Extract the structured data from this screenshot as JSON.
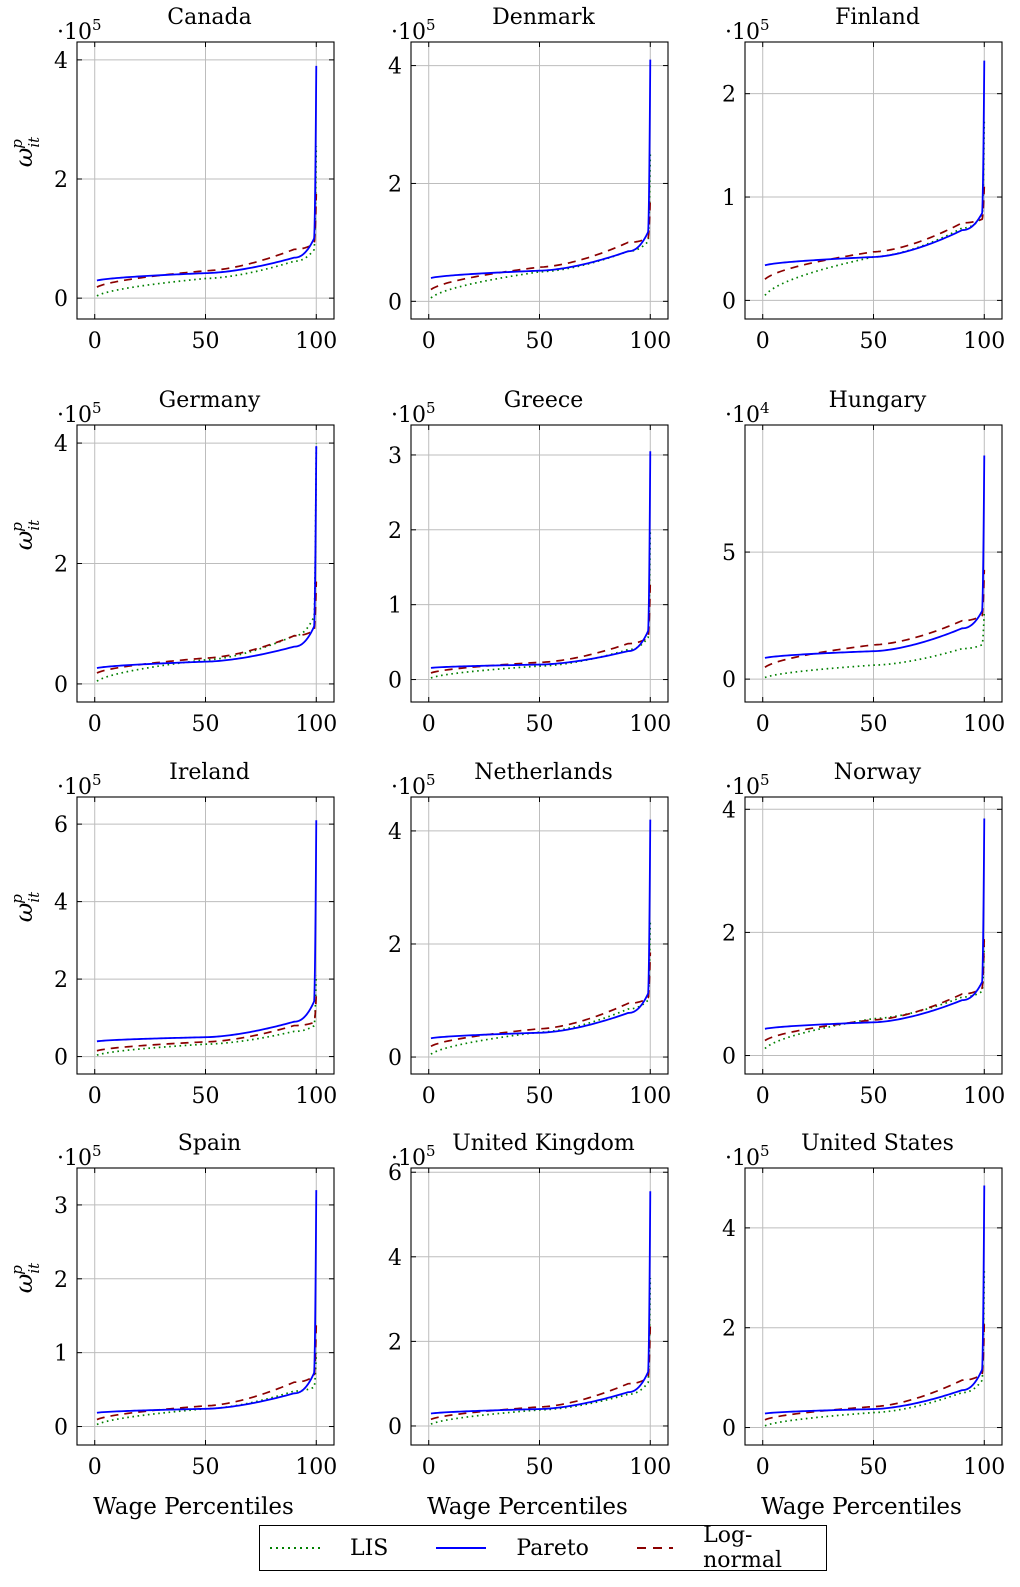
{
  "chart_data": {
    "type": "line",
    "layout": "grid 4x3",
    "xlabel": "Wage Percentiles",
    "ylabel": "ω^p_it",
    "x_ticks": [
      0,
      50,
      100
    ],
    "xlim": [
      -8,
      108
    ],
    "grid": true,
    "series_styles": [
      {
        "name": "LIS",
        "color": "#008000",
        "dash": "dotted"
      },
      {
        "name": "Pareto",
        "color": "#0000ff",
        "dash": "solid"
      },
      {
        "name": "Log-normal",
        "color": "#8b0000",
        "dash": "dashed"
      }
    ],
    "legend": {
      "placement": "bottom-center",
      "entries": [
        "LIS",
        "Pareto",
        "Log-normal"
      ]
    },
    "panels": [
      {
        "title": "Canada",
        "multiplier": "·10",
        "exponent": "5",
        "ylim": [
          -0.35,
          4.3
        ],
        "yticks": [
          0,
          2,
          4
        ],
        "series": {
          "LIS": {
            "start": 0.0,
            "mid": 0.33,
            "p90": 0.62,
            "end": 2.55
          },
          "Pareto": {
            "start": 0.28,
            "mid": 0.42,
            "p90": 0.68,
            "end": 3.9
          },
          "Log-normal": {
            "start": 0.15,
            "mid": 0.46,
            "p90": 0.82,
            "end": 1.75
          }
        }
      },
      {
        "title": "Denmark",
        "multiplier": "·10",
        "exponent": "5",
        "ylim": [
          -0.3,
          4.4
        ],
        "yticks": [
          0,
          2,
          4
        ],
        "series": {
          "LIS": {
            "start": 0.0,
            "mid": 0.5,
            "p90": 0.85,
            "end": 2.5
          },
          "Pareto": {
            "start": 0.38,
            "mid": 0.52,
            "p90": 0.85,
            "end": 4.1
          },
          "Log-normal": {
            "start": 0.15,
            "mid": 0.58,
            "p90": 1.0,
            "end": 1.75
          }
        }
      },
      {
        "title": "Finland",
        "multiplier": "·10",
        "exponent": "5",
        "ylim": [
          -0.18,
          2.5
        ],
        "yticks": [
          0,
          1,
          2
        ],
        "series": {
          "LIS": {
            "start": 0.0,
            "mid": 0.42,
            "p90": 0.7,
            "end": 1.75
          },
          "Pareto": {
            "start": 0.33,
            "mid": 0.42,
            "p90": 0.68,
            "end": 2.32
          },
          "Log-normal": {
            "start": 0.17,
            "mid": 0.47,
            "p90": 0.75,
            "end": 1.1
          }
        }
      },
      {
        "title": "Germany",
        "multiplier": "·10",
        "exponent": "5",
        "ylim": [
          -0.3,
          4.3
        ],
        "yticks": [
          0,
          2,
          4
        ],
        "series": {
          "LIS": {
            "start": 0.0,
            "mid": 0.4,
            "p90": 0.8,
            "end": 4.0
          },
          "Pareto": {
            "start": 0.25,
            "mid": 0.37,
            "p90": 0.62,
            "end": 3.95
          },
          "Log-normal": {
            "start": 0.15,
            "mid": 0.43,
            "p90": 0.8,
            "end": 1.7
          }
        }
      },
      {
        "title": "Greece",
        "multiplier": "·10",
        "exponent": "5",
        "ylim": [
          -0.3,
          3.4
        ],
        "yticks": [
          0,
          1,
          2,
          3
        ],
        "series": {
          "LIS": {
            "start": 0.0,
            "mid": 0.18,
            "p90": 0.4,
            "end": 2.0
          },
          "Pareto": {
            "start": 0.15,
            "mid": 0.2,
            "p90": 0.38,
            "end": 3.05
          },
          "Log-normal": {
            "start": 0.07,
            "mid": 0.23,
            "p90": 0.48,
            "end": 1.3
          }
        }
      },
      {
        "title": "Hungary",
        "multiplier": "·10",
        "exponent": "4",
        "ylim": [
          -0.9,
          10.0
        ],
        "yticks": [
          0,
          5
        ],
        "series": {
          "LIS": {
            "start": 0.0,
            "mid": 0.55,
            "p90": 1.2,
            "end": 2.7
          },
          "Pareto": {
            "start": 0.8,
            "mid": 1.1,
            "p90": 2.0,
            "end": 8.8
          },
          "Log-normal": {
            "start": 0.35,
            "mid": 1.35,
            "p90": 2.3,
            "end": 4.3
          }
        }
      },
      {
        "title": "Ireland",
        "multiplier": "·10",
        "exponent": "5",
        "ylim": [
          -0.45,
          6.7
        ],
        "yticks": [
          0,
          2,
          4,
          6
        ],
        "series": {
          "LIS": {
            "start": 0.0,
            "mid": 0.32,
            "p90": 0.65,
            "end": 2.1
          },
          "Pareto": {
            "start": 0.38,
            "mid": 0.5,
            "p90": 0.9,
            "end": 6.1
          },
          "Log-normal": {
            "start": 0.12,
            "mid": 0.38,
            "p90": 0.8,
            "end": 1.6
          }
        }
      },
      {
        "title": "Netherlands",
        "multiplier": "·10",
        "exponent": "5",
        "ylim": [
          -0.3,
          4.6
        ],
        "yticks": [
          0,
          2,
          4
        ],
        "series": {
          "LIS": {
            "start": 0.0,
            "mid": 0.44,
            "p90": 0.85,
            "end": 2.4
          },
          "Pareto": {
            "start": 0.32,
            "mid": 0.43,
            "p90": 0.78,
            "end": 4.2
          },
          "Log-normal": {
            "start": 0.15,
            "mid": 0.5,
            "p90": 0.95,
            "end": 1.85
          }
        }
      },
      {
        "title": "Norway",
        "multiplier": "·10",
        "exponent": "5",
        "ylim": [
          -0.3,
          4.2
        ],
        "yticks": [
          0,
          2,
          4
        ],
        "series": {
          "LIS": {
            "start": 0.05,
            "mid": 0.6,
            "p90": 0.95,
            "end": 1.85
          },
          "Pareto": {
            "start": 0.42,
            "mid": 0.54,
            "p90": 0.9,
            "end": 3.85
          },
          "Log-normal": {
            "start": 0.2,
            "mid": 0.58,
            "p90": 1.0,
            "end": 1.95
          }
        }
      },
      {
        "title": "Spain",
        "multiplier": "·10",
        "exponent": "5",
        "ylim": [
          -0.25,
          3.5
        ],
        "yticks": [
          0,
          1,
          2,
          3
        ],
        "series": {
          "LIS": {
            "start": 0.0,
            "mid": 0.24,
            "p90": 0.48,
            "end": 1.0
          },
          "Pareto": {
            "start": 0.18,
            "mid": 0.24,
            "p90": 0.45,
            "end": 3.2
          },
          "Log-normal": {
            "start": 0.07,
            "mid": 0.28,
            "p90": 0.6,
            "end": 1.4
          }
        }
      },
      {
        "title": "United Kingdom",
        "multiplier": "·10",
        "exponent": "5",
        "ylim": [
          -0.45,
          6.1
        ],
        "yticks": [
          0,
          2,
          4,
          6
        ],
        "series": {
          "LIS": {
            "start": 0.0,
            "mid": 0.38,
            "p90": 0.75,
            "end": 3.5
          },
          "Pareto": {
            "start": 0.28,
            "mid": 0.4,
            "p90": 0.8,
            "end": 5.55
          },
          "Log-normal": {
            "start": 0.12,
            "mid": 0.45,
            "p90": 1.0,
            "end": 2.4
          }
        }
      },
      {
        "title": "United States",
        "multiplier": "·10",
        "exponent": "5",
        "ylim": [
          -0.35,
          5.2
        ],
        "yticks": [
          0,
          2,
          4
        ],
        "series": {
          "LIS": {
            "start": 0.0,
            "mid": 0.3,
            "p90": 0.7,
            "end": 3.15
          },
          "Pareto": {
            "start": 0.27,
            "mid": 0.37,
            "p90": 0.75,
            "end": 4.85
          },
          "Log-normal": {
            "start": 0.12,
            "mid": 0.42,
            "p90": 0.95,
            "end": 2.1
          }
        }
      }
    ]
  }
}
